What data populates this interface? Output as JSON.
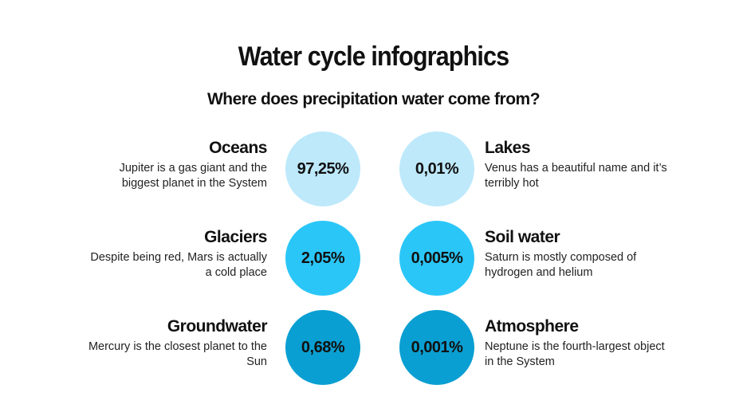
{
  "title": "Water cycle infographics",
  "subtitle": "Where does precipitation water come from?",
  "colors": {
    "light": "#bde9fb",
    "medium": "#2bc6f8",
    "dark": "#0a9fd2"
  },
  "items": [
    {
      "name": "Oceans",
      "value": "97,25%",
      "desc": "Jupiter is a gas giant and the biggest planet in the System",
      "tone": "light"
    },
    {
      "name": "Lakes",
      "value": "0,01%",
      "desc": "Venus has a beautiful name and it’s terribly hot",
      "tone": "light"
    },
    {
      "name": "Glaciers",
      "value": "2,05%",
      "desc": "Despite being red, Mars is actually a cold place",
      "tone": "medium"
    },
    {
      "name": "Soil water",
      "value": "0,005%",
      "desc": "Saturn is mostly composed of hydrogen and helium",
      "tone": "medium"
    },
    {
      "name": "Groundwater",
      "value": "0,68%",
      "desc": "Mercury is the closest planet to the Sun",
      "tone": "dark"
    },
    {
      "name": "Atmosphere",
      "value": "0,001%",
      "desc": "Neptune is the fourth-largest object in the System",
      "tone": "dark"
    }
  ]
}
